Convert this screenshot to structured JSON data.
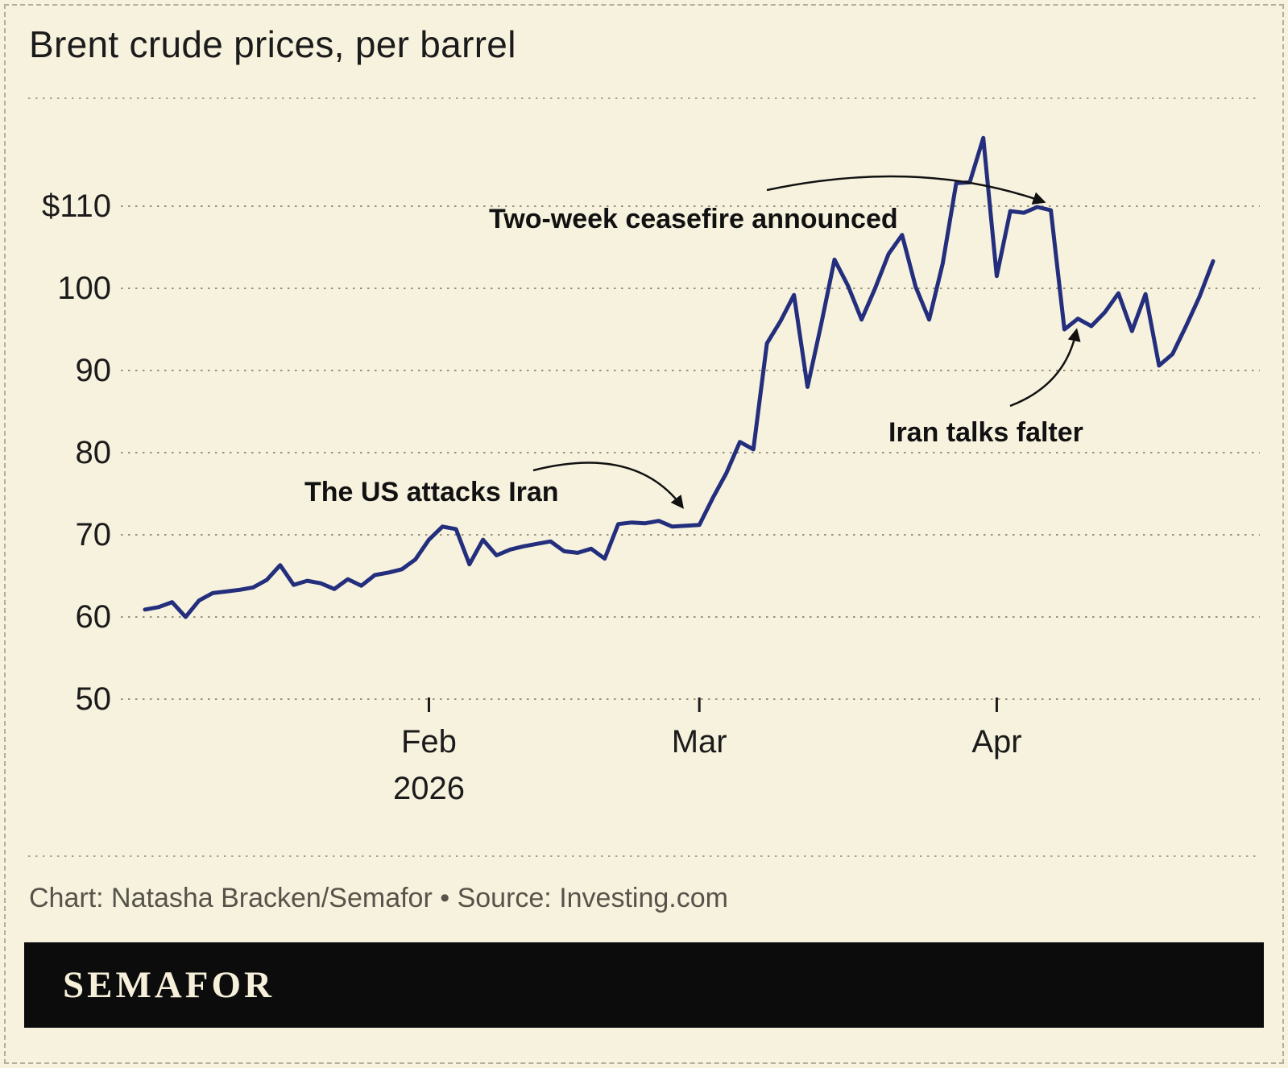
{
  "title": "Brent crude prices, per barrel",
  "footer": {
    "credit": "Chart: Natasha Bracken/Semafor • Source: Investing.com",
    "brand": "SEMAFOR"
  },
  "colors": {
    "background": "#f7f2de",
    "line": "#232e7d",
    "grid": "#97917e",
    "text": "#1b1b1b",
    "muted_text": "#57534a",
    "brand_bar": "#0c0c0c",
    "brand_text": "#f6f0da"
  },
  "chart_data": {
    "type": "line",
    "title": "Brent crude prices, per barrel",
    "x_axis": {
      "ticks": [
        {
          "label": "Feb",
          "index": 21
        },
        {
          "label": "Mar",
          "index": 41
        },
        {
          "label": "Apr",
          "index": 63
        }
      ],
      "year_label": "2026"
    },
    "y_axis": {
      "ticks": [
        {
          "value": 50,
          "label": "50"
        },
        {
          "value": 60,
          "label": "60"
        },
        {
          "value": 70,
          "label": "70"
        },
        {
          "value": 80,
          "label": "80"
        },
        {
          "value": 90,
          "label": "90"
        },
        {
          "value": 100,
          "label": "100"
        },
        {
          "value": 110,
          "label": "$110"
        }
      ],
      "range": [
        47,
        122
      ]
    },
    "series": [
      {
        "name": "Brent crude price per barrel (USD)",
        "values": [
          60.9,
          61.2,
          61.8,
          60.0,
          62.0,
          62.9,
          63.1,
          63.3,
          63.6,
          64.5,
          66.3,
          63.9,
          64.4,
          64.1,
          63.4,
          64.6,
          63.8,
          65.1,
          65.4,
          65.8,
          67.0,
          69.4,
          71.0,
          70.7,
          66.4,
          69.4,
          67.5,
          68.2,
          68.6,
          68.9,
          69.2,
          68.0,
          67.8,
          68.3,
          67.1,
          71.3,
          71.5,
          71.4,
          71.7,
          71.0,
          71.1,
          71.2,
          74.5,
          77.5,
          81.3,
          80.4,
          93.3,
          96.0,
          99.2,
          88.0,
          95.5,
          103.5,
          100.3,
          96.2,
          100.0,
          104.2,
          106.5,
          100.2,
          96.2,
          103.0,
          112.8,
          112.9,
          118.3,
          101.5,
          109.4,
          109.2,
          109.9,
          109.5,
          95.0,
          96.3,
          95.4,
          97.1,
          99.4,
          94.8,
          99.3,
          90.6,
          92.0,
          95.4,
          99.0,
          103.3
        ]
      }
    ],
    "annotations": [
      {
        "text": "The US attacks Iran"
      },
      {
        "text": "Two-week ceasefire announced"
      },
      {
        "text": "Iran talks falter"
      }
    ]
  }
}
